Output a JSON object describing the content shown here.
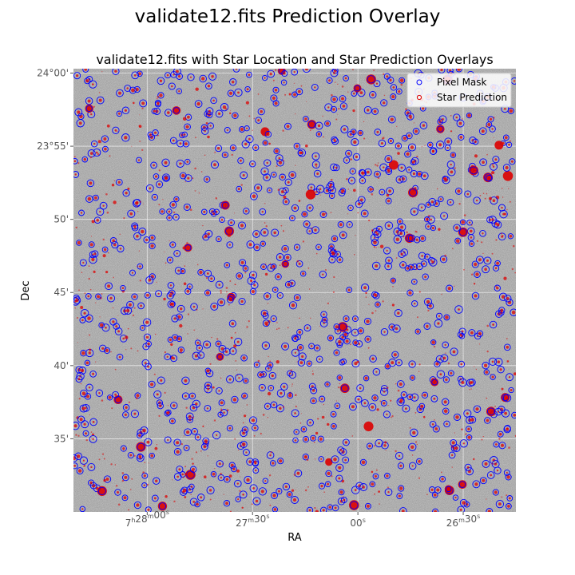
{
  "figure": {
    "suptitle": "validate12.fits Prediction Overlay"
  },
  "chart_data": {
    "type": "scatter",
    "title": "validate12.fits with Star Location and Star Prediction Overlays",
    "xlabel": "RA",
    "ylabel": "Dec",
    "x_ticks": [
      {
        "label_h": "7",
        "label_m": "28",
        "label_s": "00",
        "ra_sec_offset": 0
      },
      {
        "label_h": "",
        "label_m": "27",
        "label_s": "30",
        "ra_sec_offset": 30
      },
      {
        "label_h": "",
        "label_m": "",
        "label_s": "00",
        "ra_sec_offset": 60
      },
      {
        "label_h": "",
        "label_m": "26",
        "label_s": "30",
        "ra_sec_offset": 90
      }
    ],
    "x_units": {
      "h": "h",
      "m": "m",
      "s": "s"
    },
    "y_ticks": [
      {
        "label": "24°00'",
        "dec_arcmin": 0
      },
      {
        "label": "23°55'",
        "dec_arcmin": -5
      },
      {
        "label": "50'",
        "dec_arcmin": -10
      },
      {
        "label": "45'",
        "dec_arcmin": -15
      },
      {
        "label": "40'",
        "dec_arcmin": -20
      },
      {
        "label": "35'",
        "dec_arcmin": -25
      }
    ],
    "xlim_ra_sec_offset": [
      -21,
      105
    ],
    "ylim_dec_arcmin": [
      -30,
      0.3
    ],
    "grid": true,
    "legend_position": "top-right",
    "series": [
      {
        "name": "Pixel Mask",
        "marker": "open-circle",
        "color": "#0000ff"
      },
      {
        "name": "Star Prediction",
        "marker": "red-dots",
        "color": "#dd0000"
      }
    ],
    "approx_source_count": 1100,
    "background_color": "#d3d3d3"
  }
}
